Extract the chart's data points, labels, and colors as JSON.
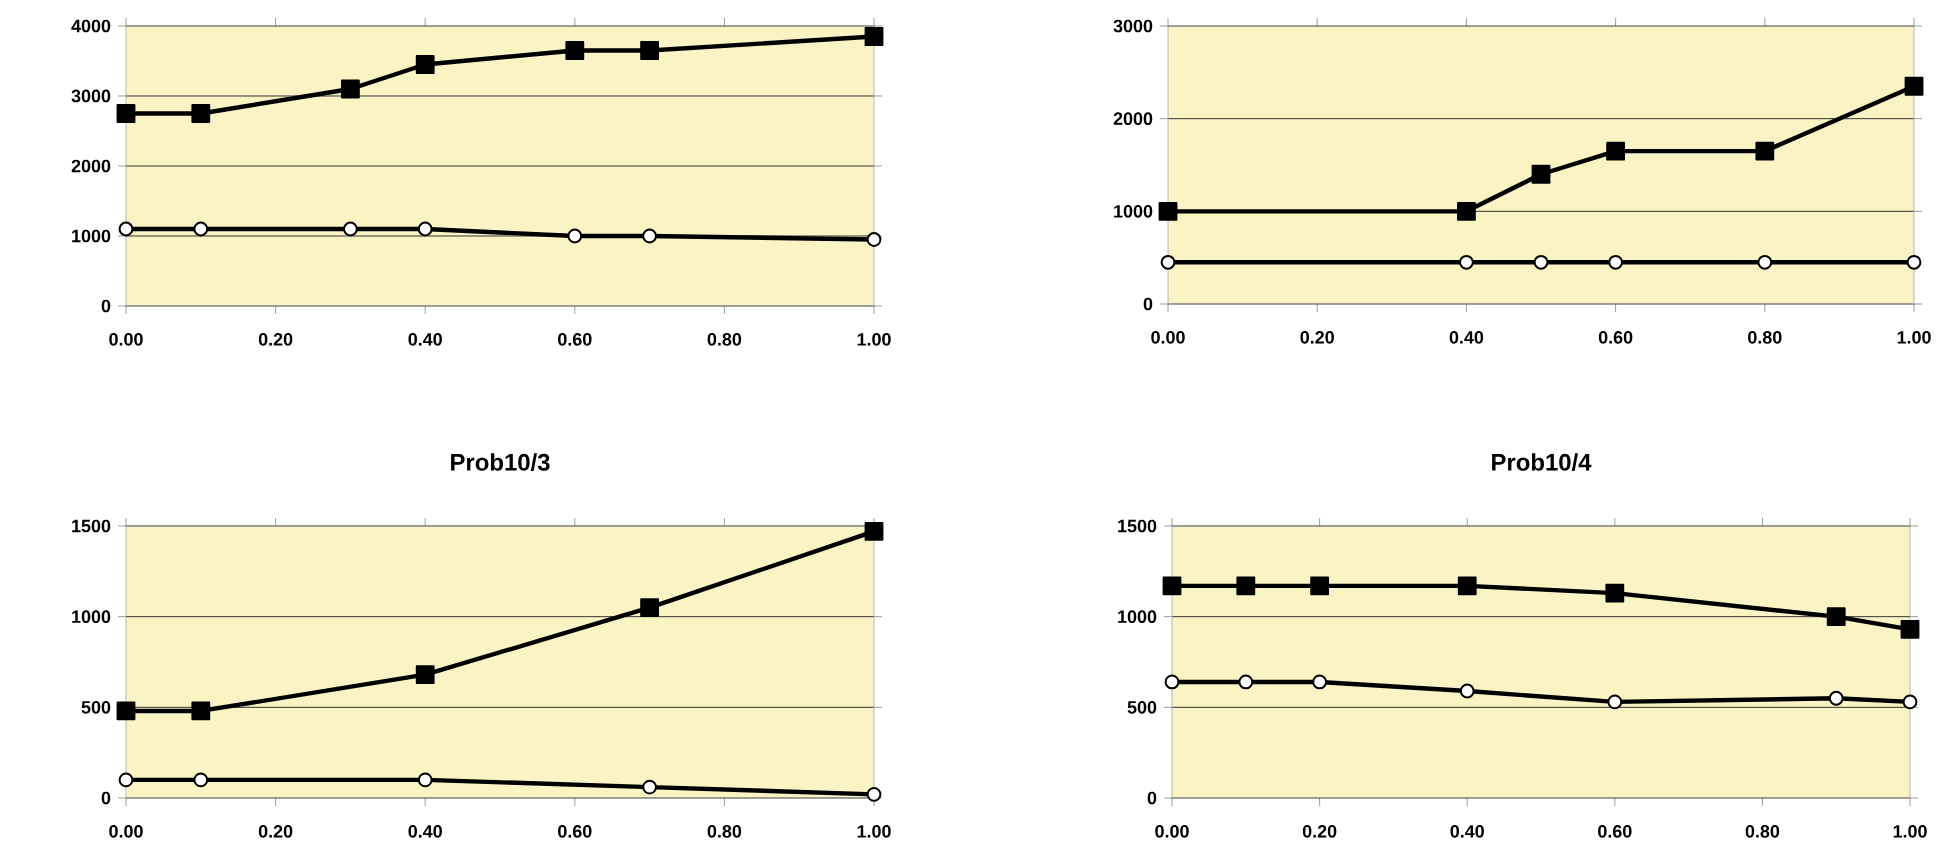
{
  "chart_data": [
    {
      "type": "line",
      "grid": "y",
      "xlim": [
        0,
        1
      ],
      "ylim": [
        0,
        4000
      ],
      "xticks": [
        {
          "value": 0,
          "label": "0.00"
        },
        {
          "value": 0.2,
          "label": "0.20"
        },
        {
          "value": 0.4,
          "label": "0.40"
        },
        {
          "value": 0.6,
          "label": "0.60"
        },
        {
          "value": 0.8,
          "label": "0.80"
        },
        {
          "value": 1,
          "label": "1.00"
        }
      ],
      "yticks": [
        0,
        1000,
        2000,
        3000,
        4000
      ],
      "series": [
        {
          "color": "#000000",
          "marker": "square",
          "x": [
            0,
            0.1,
            0.3,
            0.4,
            0.6,
            0.7,
            1.0
          ],
          "values": [
            2750,
            2750,
            3100,
            3450,
            3650,
            3650,
            3850
          ]
        },
        {
          "color": "#000000",
          "marker": "circle",
          "x": [
            0,
            0.1,
            0.3,
            0.4,
            0.6,
            0.7,
            1.0
          ],
          "values": [
            1100,
            1100,
            1100,
            1100,
            1000,
            1000,
            950
          ]
        }
      ]
    },
    {
      "type": "line",
      "grid": "y",
      "xlim": [
        0,
        1
      ],
      "ylim": [
        0,
        3000
      ],
      "xticks": [
        {
          "value": 0,
          "label": "0.00"
        },
        {
          "value": 0.2,
          "label": "0.20"
        },
        {
          "value": 0.4,
          "label": "0.40"
        },
        {
          "value": 0.6,
          "label": "0.60"
        },
        {
          "value": 0.8,
          "label": "0.80"
        },
        {
          "value": 1,
          "label": "1.00"
        }
      ],
      "yticks": [
        0,
        1000,
        2000,
        3000
      ],
      "series": [
        {
          "color": "#000000",
          "marker": "square",
          "x": [
            0,
            0.4,
            0.5,
            0.6,
            0.8,
            1.0
          ],
          "values": [
            1000,
            1000,
            1400,
            1650,
            1650,
            2350
          ]
        },
        {
          "color": "#000000",
          "marker": "circle",
          "x": [
            0,
            0.4,
            0.5,
            0.6,
            0.8,
            1.0
          ],
          "values": [
            450,
            450,
            450,
            450,
            450,
            450
          ]
        }
      ]
    },
    {
      "type": "line",
      "title": "Prob10/3",
      "grid": "y",
      "xlim": [
        0,
        1
      ],
      "ylim": [
        0,
        1500
      ],
      "xticks": [
        {
          "value": 0,
          "label": "0.00"
        },
        {
          "value": 0.2,
          "label": "0.20"
        },
        {
          "value": 0.4,
          "label": "0.40"
        },
        {
          "value": 0.6,
          "label": "0.60"
        },
        {
          "value": 0.8,
          "label": "0.80"
        },
        {
          "value": 1,
          "label": "1.00"
        }
      ],
      "yticks": [
        0,
        500,
        1000,
        1500
      ],
      "series": [
        {
          "color": "#000000",
          "marker": "square",
          "x": [
            0,
            0.1,
            0.4,
            0.7,
            1.0
          ],
          "values": [
            480,
            480,
            680,
            1050,
            1470
          ]
        },
        {
          "color": "#000000",
          "marker": "circle",
          "x": [
            0,
            0.1,
            0.4,
            0.7,
            1.0
          ],
          "values": [
            100,
            100,
            100,
            60,
            20
          ]
        }
      ]
    },
    {
      "type": "line",
      "title": "Prob10/4",
      "grid": "y",
      "xlim": [
        0,
        1
      ],
      "ylim": [
        0,
        1500
      ],
      "xticks": [
        {
          "value": 0,
          "label": "0.00"
        },
        {
          "value": 0.2,
          "label": "0.20"
        },
        {
          "value": 0.4,
          "label": "0.40"
        },
        {
          "value": 0.6,
          "label": "0.60"
        },
        {
          "value": 0.8,
          "label": "0.80"
        },
        {
          "value": 1,
          "label": "1.00"
        }
      ],
      "yticks": [
        0,
        500,
        1000,
        1500
      ],
      "series": [
        {
          "color": "#000000",
          "marker": "square",
          "x": [
            0,
            0.1,
            0.2,
            0.4,
            0.6,
            0.9,
            1.0
          ],
          "values": [
            1170,
            1170,
            1170,
            1170,
            1130,
            1000,
            930
          ]
        },
        {
          "color": "#000000",
          "marker": "circle",
          "x": [
            0,
            0.1,
            0.2,
            0.4,
            0.6,
            0.9,
            1.0
          ],
          "values": [
            640,
            640,
            640,
            590,
            530,
            550,
            530
          ]
        }
      ]
    }
  ]
}
